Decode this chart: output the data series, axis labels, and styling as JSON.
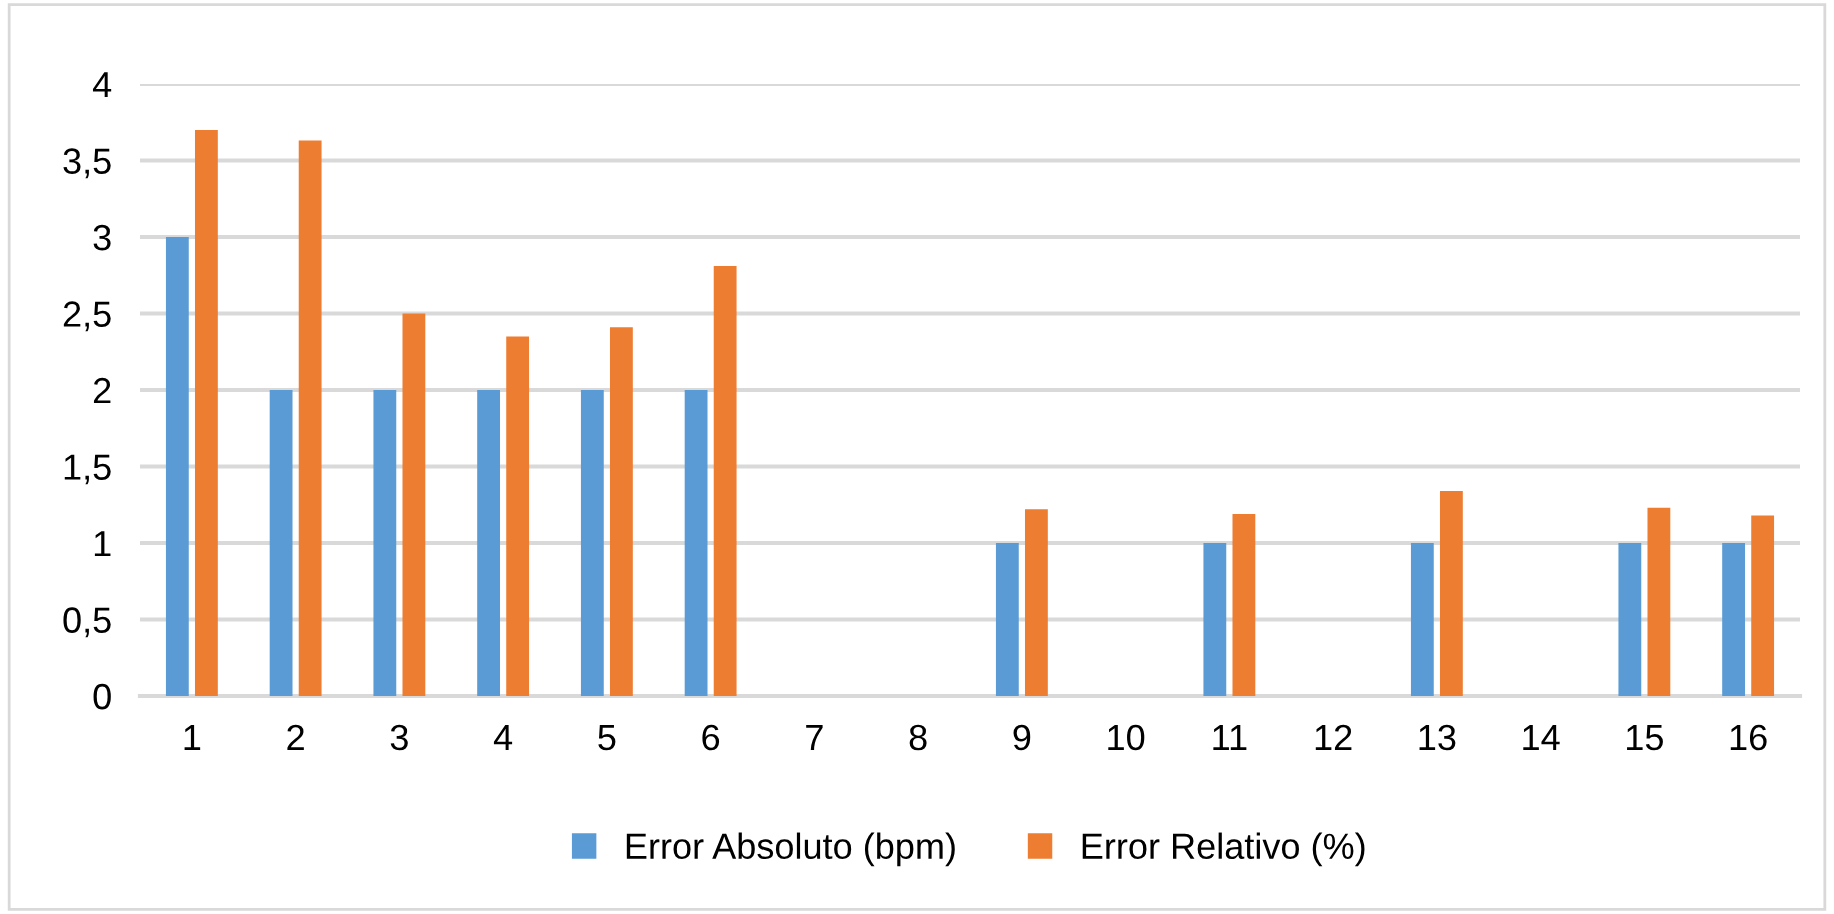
{
  "chart_data": {
    "type": "bar",
    "categories": [
      "1",
      "2",
      "3",
      "4",
      "5",
      "6",
      "7",
      "8",
      "9",
      "10",
      "11",
      "12",
      "13",
      "14",
      "15",
      "16"
    ],
    "series": [
      {
        "name": "Error Absoluto (bpm)",
        "color": "#5b9bd5",
        "values": [
          3,
          2,
          2,
          2,
          2,
          2,
          null,
          null,
          1,
          null,
          1,
          null,
          1,
          null,
          1,
          1
        ]
      },
      {
        "name": "Error Relativo (%)",
        "color": "#ed7d31",
        "values": [
          3.7,
          3.63,
          2.5,
          2.35,
          2.41,
          2.81,
          null,
          null,
          1.22,
          null,
          1.19,
          null,
          1.34,
          null,
          1.23,
          1.18
        ]
      }
    ],
    "ylim": [
      0,
      4
    ],
    "yticks": [
      0,
      {
        "value": 0.5,
        "label": "0,5"
      },
      1,
      {
        "value": 1.5,
        "label": "1,5"
      },
      2,
      {
        "value": 2.5,
        "label": "2,5"
      },
      3,
      {
        "value": 3.5,
        "label": "3,5"
      },
      4
    ],
    "grid": "y",
    "legend": "bottom"
  }
}
